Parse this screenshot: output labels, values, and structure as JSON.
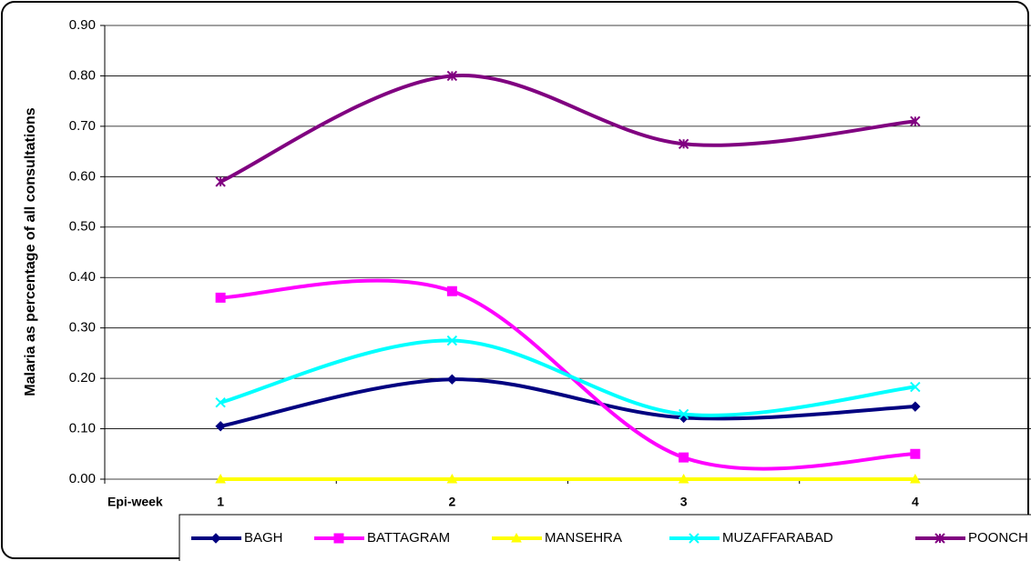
{
  "chart_data": {
    "type": "line",
    "y_label": "Malaria as percentage of all consultations",
    "x_label": "Epi-week",
    "categories": [
      "1",
      "2",
      "3",
      "4"
    ],
    "series": [
      {
        "name": "BAGH",
        "color": "#000080",
        "marker": "diamond",
        "values": [
          0.105,
          0.198,
          0.122,
          0.144
        ]
      },
      {
        "name": "BATTAGRAM",
        "color": "#ff00ff",
        "marker": "square",
        "values": [
          0.36,
          0.373,
          0.043,
          0.05
        ]
      },
      {
        "name": "MANSEHRA",
        "color": "#ffff00",
        "marker": "triangle",
        "values": [
          0,
          0,
          0,
          0
        ]
      },
      {
        "name": "MUZAFFARABAD",
        "color": "#00ffff",
        "marker": "x",
        "values": [
          0.152,
          0.275,
          0.129,
          0.183
        ]
      },
      {
        "name": "POONCH",
        "color": "#800080",
        "marker": "star",
        "values": [
          0.59,
          0.8,
          0.665,
          0.71
        ]
      }
    ],
    "ylim": [
      0,
      0.9
    ],
    "yticks": [
      {
        "value": 0,
        "label": "0.00"
      },
      {
        "value": 0.1,
        "label": "0.10"
      },
      {
        "value": 0.2,
        "label": "0.20"
      },
      {
        "value": 0.3,
        "label": "0.30"
      },
      {
        "value": 0.4,
        "label": "0.40"
      },
      {
        "value": 0.5,
        "label": "0.50"
      },
      {
        "value": 0.6,
        "label": "0.60"
      },
      {
        "value": 0.7,
        "label": "0.70"
      },
      {
        "value": 0.8,
        "label": "0.80"
      },
      {
        "value": 0.9,
        "label": "0.90"
      }
    ],
    "grid": true,
    "smooth": true,
    "legend": "bottom"
  }
}
